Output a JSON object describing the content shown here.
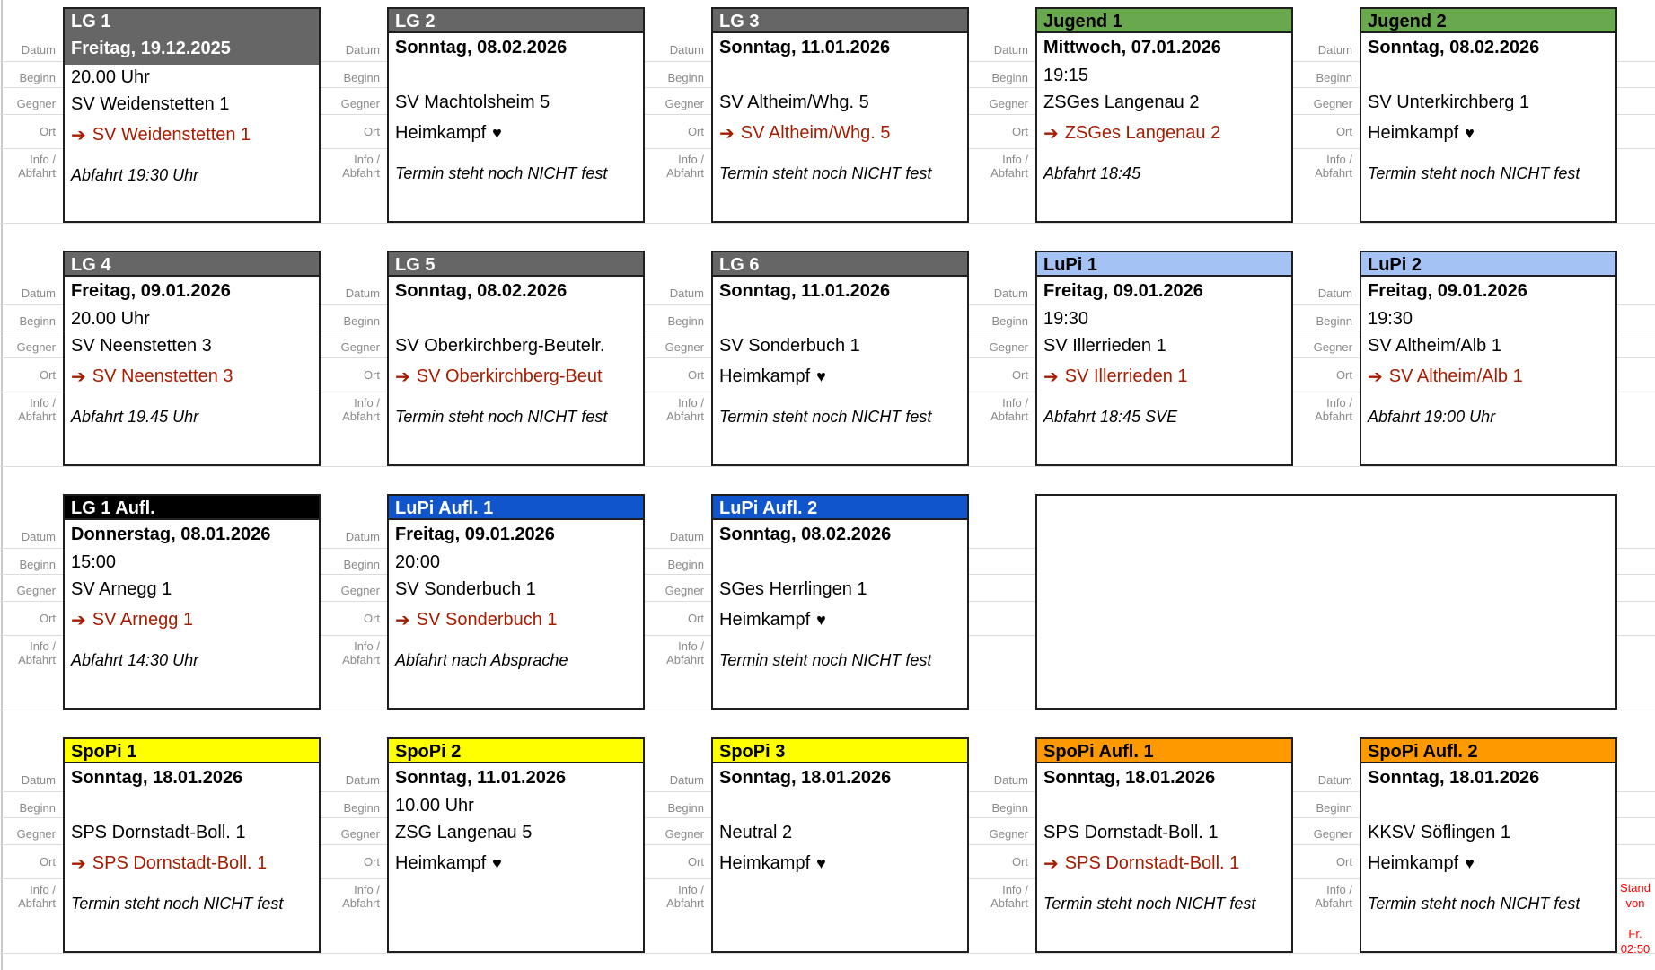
{
  "page": {
    "background": "#ffffff"
  },
  "icons": {
    "away_arrow": "➔",
    "home_heart": "♥"
  },
  "row_labels": {
    "datum": "Datum",
    "beginn": "Beginn",
    "gegner": "Gegner",
    "ort": "Ort",
    "info_line1": "Info /",
    "info_line2": "Abfahrt"
  },
  "colors": {
    "lg_header": "#666666",
    "jugend_header": "#6aa84f",
    "lupi_header": "#a4c2f4",
    "lupi_aufl_header": "#1155cc",
    "lg_aufl_header": "#000000",
    "spopi_header": "#ffff00",
    "spopi_aufl_header": "#ff9900",
    "away_link": "#a61c00",
    "card_border": "#1f1f1f",
    "stand_note": "#ff0000",
    "label_gray": "#8a8a8a"
  },
  "stand_note": {
    "line1": "Stand von",
    "line2": "Fr. 02:50"
  },
  "cards": [
    {
      "title": "LG 1",
      "header_bg": "#666666",
      "header_fg": "#ffffff",
      "row": 0,
      "col": 0,
      "datum": "Freitag, 19.12.2025",
      "datum_highlight": true,
      "beginn": "20.00 Uhr",
      "gegner": "SV Weidenstetten 1",
      "ort": "SV Weidenstetten 1",
      "ort_type": "away",
      "info": "Abfahrt 19:30 Uhr"
    },
    {
      "title": "LG 2",
      "header_bg": "#666666",
      "header_fg": "#ffffff",
      "row": 0,
      "col": 1,
      "datum": "Sonntag, 08.02.2026",
      "datum_highlight": false,
      "beginn": "",
      "gegner": "SV Machtolsheim 5",
      "ort": "Heimkampf",
      "ort_type": "home",
      "info": "Termin steht noch NICHT fest"
    },
    {
      "title": "LG 3",
      "header_bg": "#666666",
      "header_fg": "#ffffff",
      "row": 0,
      "col": 2,
      "datum": "Sonntag, 11.01.2026",
      "datum_highlight": false,
      "beginn": "",
      "gegner": "SV Altheim/Whg. 5",
      "ort": "SV Altheim/Whg. 5",
      "ort_type": "away",
      "info": "Termin steht noch NICHT fest"
    },
    {
      "title": "Jugend 1",
      "header_bg": "#6aa84f",
      "header_fg": "#000000",
      "row": 0,
      "col": 3,
      "datum": "Mittwoch, 07.01.2026",
      "datum_highlight": false,
      "beginn": "19:15",
      "gegner": "ZSGes Langenau 2",
      "ort": "ZSGes Langenau 2",
      "ort_type": "away",
      "info": "Abfahrt 18:45"
    },
    {
      "title": "Jugend 2",
      "header_bg": "#6aa84f",
      "header_fg": "#000000",
      "row": 0,
      "col": 4,
      "datum": "Sonntag, 08.02.2026",
      "datum_highlight": false,
      "beginn": "",
      "gegner": "SV Unterkirchberg 1",
      "ort": "Heimkampf",
      "ort_type": "home",
      "info": "Termin steht noch NICHT fest"
    },
    {
      "title": "LG 4",
      "header_bg": "#666666",
      "header_fg": "#ffffff",
      "row": 1,
      "col": 0,
      "datum": "Freitag, 09.01.2026",
      "datum_highlight": false,
      "beginn": "20.00 Uhr",
      "gegner": "SV Neenstetten 3",
      "ort": "SV Neenstetten 3",
      "ort_type": "away",
      "info": "Abfahrt 19.45 Uhr"
    },
    {
      "title": "LG 5",
      "header_bg": "#666666",
      "header_fg": "#ffffff",
      "row": 1,
      "col": 1,
      "datum": "Sonntag, 08.02.2026",
      "datum_highlight": false,
      "beginn": "",
      "gegner": "SV Oberkirchberg-Beutelr.",
      "ort": "SV Oberkirchberg-Beut",
      "ort_type": "away",
      "info": "Termin steht noch NICHT fest"
    },
    {
      "title": "LG 6",
      "header_bg": "#666666",
      "header_fg": "#ffffff",
      "row": 1,
      "col": 2,
      "datum": "Sonntag, 11.01.2026",
      "datum_highlight": false,
      "beginn": "",
      "gegner": "SV Sonderbuch 1",
      "ort": "Heimkampf",
      "ort_type": "home",
      "info": "Termin steht noch NICHT fest"
    },
    {
      "title": "LuPi 1",
      "header_bg": "#a4c2f4",
      "header_fg": "#000000",
      "row": 1,
      "col": 3,
      "datum": "Freitag, 09.01.2026",
      "datum_highlight": false,
      "beginn": "19:30",
      "gegner": "SV Illerrieden 1",
      "ort": "SV Illerrieden 1",
      "ort_type": "away",
      "info": "Abfahrt 18:45 SVE"
    },
    {
      "title": "LuPi 2",
      "header_bg": "#a4c2f4",
      "header_fg": "#000000",
      "row": 1,
      "col": 4,
      "datum": "Freitag, 09.01.2026",
      "datum_highlight": false,
      "beginn": "19:30",
      "gegner": "SV Altheim/Alb 1",
      "ort": "SV Altheim/Alb 1",
      "ort_type": "away",
      "info": "Abfahrt 19:00 Uhr"
    },
    {
      "title": "LG 1 Aufl.",
      "header_bg": "#000000",
      "header_fg": "#ffffff",
      "row": 2,
      "col": 0,
      "datum": "Donnerstag, 08.01.2026",
      "datum_highlight": false,
      "beginn": "15:00",
      "gegner": "SV Arnegg 1",
      "ort": "SV Arnegg 1",
      "ort_type": "away",
      "info": "Abfahrt 14:30 Uhr"
    },
    {
      "title": "LuPi Aufl. 1",
      "header_bg": "#1155cc",
      "header_fg": "#ffffff",
      "row": 2,
      "col": 1,
      "datum": "Freitag, 09.01.2026",
      "datum_highlight": false,
      "beginn": "20:00",
      "gegner": "SV Sonderbuch 1",
      "ort": "SV Sonderbuch 1",
      "ort_type": "away",
      "info": "Abfahrt nach Absprache"
    },
    {
      "title": "LuPi Aufl. 2",
      "header_bg": "#1155cc",
      "header_fg": "#ffffff",
      "row": 2,
      "col": 2,
      "datum": "Sonntag, 08.02.2026",
      "datum_highlight": false,
      "beginn": "",
      "gegner": "SGes Herrlingen 1",
      "ort": "Heimkampf",
      "ort_type": "home",
      "info": "Termin steht noch NICHT fest"
    },
    {
      "title": "SpoPi 1",
      "header_bg": "#ffff00",
      "header_fg": "#000000",
      "row": 3,
      "col": 0,
      "datum": "Sonntag, 18.01.2026",
      "datum_highlight": false,
      "beginn": "",
      "gegner": "SPS Dornstadt-Boll. 1",
      "ort": "SPS Dornstadt-Boll. 1",
      "ort_type": "away",
      "info": "Termin steht noch NICHT fest"
    },
    {
      "title": "SpoPi 2",
      "header_bg": "#ffff00",
      "header_fg": "#000000",
      "row": 3,
      "col": 1,
      "datum": "Sonntag, 11.01.2026",
      "datum_highlight": false,
      "beginn": "10.00 Uhr",
      "gegner": "ZSG Langenau 5",
      "ort": "Heimkampf",
      "ort_type": "home",
      "info": ""
    },
    {
      "title": "SpoPi 3",
      "header_bg": "#ffff00",
      "header_fg": "#000000",
      "row": 3,
      "col": 2,
      "datum": "Sonntag, 18.01.2026",
      "datum_highlight": false,
      "beginn": "",
      "gegner": "Neutral 2",
      "ort": "Heimkampf",
      "ort_type": "home",
      "info": ""
    },
    {
      "title": "SpoPi Aufl. 1",
      "header_bg": "#ff9900",
      "header_fg": "#000000",
      "row": 3,
      "col": 3,
      "datum": "Sonntag, 18.01.2026",
      "datum_highlight": false,
      "beginn": "",
      "gegner": "SPS Dornstadt-Boll. 1",
      "ort": "SPS Dornstadt-Boll. 1",
      "ort_type": "away",
      "info": "Termin steht noch NICHT fest"
    },
    {
      "title": "SpoPi Aufl. 2",
      "header_bg": "#ff9900",
      "header_fg": "#000000",
      "row": 3,
      "col": 4,
      "datum": "Sonntag, 18.01.2026",
      "datum_highlight": false,
      "beginn": "",
      "gegner": "KKSV Söflingen 1",
      "ort": "Heimkampf",
      "ort_type": "home",
      "info": "Termin steht noch NICHT fest"
    }
  ],
  "empty_cell": {
    "row": 2,
    "col_start": 3,
    "col_span": 2
  }
}
